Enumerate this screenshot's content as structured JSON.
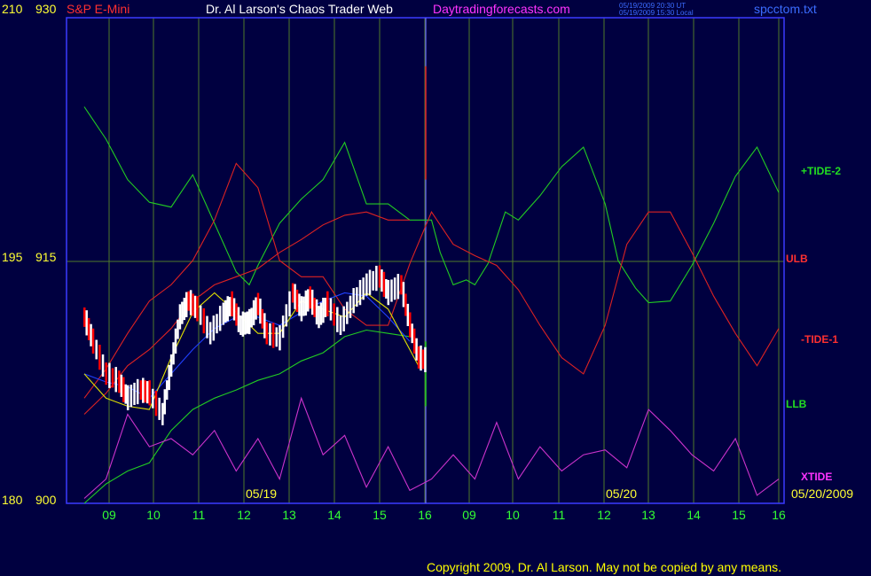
{
  "header": {
    "instrument": "S&P E-Mini",
    "title": "Dr. Al Larson's Chaos Trader Web",
    "website": "Daytradingforecasts.com",
    "timestamp_ut": "05/19/2009 20:30 UT",
    "timestamp_local": "05/19/2009 15:30 Local",
    "filename": "spcctom.txt"
  },
  "footer": {
    "copyright": "Copyright 2009, Dr. Al Larson. May not be copied by any means."
  },
  "colors": {
    "background": "#000040",
    "grid": "#4f7a2a",
    "frame": "#3a3aff",
    "divider": "#6a6aff",
    "tide2": "#22cc22",
    "tide1": "#dd2222",
    "ulb": "#dd2222",
    "llb": "#22cc22",
    "xtide": "#cc33cc",
    "blue_avg": "#2040ff",
    "yellow_avg": "#e0e000",
    "bar_up": "#ffffff",
    "bar_down": "#ff0000",
    "axis_text": "#ffff33",
    "hour_text": "#33ff33"
  },
  "chart_data": {
    "type": "line",
    "y_left_outer": {
      "min": 180,
      "max": 210,
      "ticks": [
        "210",
        "195",
        "180"
      ]
    },
    "y_left_inner": {
      "min": 900,
      "max": 930,
      "ticks": [
        "930",
        "915",
        "900"
      ]
    },
    "x_hour_labels": [
      "09",
      "10",
      "11",
      "12",
      "13",
      "14",
      "15",
      "16",
      "09",
      "10",
      "11",
      "12",
      "13",
      "14",
      "15",
      "16"
    ],
    "date_labels": [
      "05/19",
      "05/20",
      "05/20/2009"
    ],
    "series_labels": [
      "+TIDE-2",
      "ULB",
      "-TIDE-1",
      "LLB",
      "XTIDE"
    ],
    "x_range": [
      0,
      16
    ],
    "series": [
      {
        "name": "+TIDE-2",
        "values": [
          [
            0,
            924.5
          ],
          [
            0.5,
            922.5
          ],
          [
            1,
            920
          ],
          [
            1.5,
            918.6
          ],
          [
            2,
            918.3
          ],
          [
            2.5,
            920.3
          ],
          [
            3,
            917.3
          ],
          [
            3.5,
            914.3
          ],
          [
            3.8,
            913.5
          ],
          [
            4,
            914.7
          ],
          [
            4.5,
            917.3
          ],
          [
            5,
            918.8
          ],
          [
            5.5,
            920
          ],
          [
            6,
            922.3
          ],
          [
            6.5,
            918.5
          ],
          [
            7,
            918.5
          ],
          [
            7.5,
            917.5
          ],
          [
            8,
            917.5
          ],
          [
            8.2,
            915.5
          ],
          [
            8.5,
            913.5
          ],
          [
            8.8,
            913.8
          ],
          [
            9,
            913.5
          ],
          [
            9.3,
            914.8
          ],
          [
            9.7,
            918
          ],
          [
            10,
            917.5
          ],
          [
            10.5,
            919
          ],
          [
            11,
            920.8
          ],
          [
            11.5,
            922
          ],
          [
            12,
            918.5
          ],
          [
            12.3,
            915
          ],
          [
            12.7,
            913.3
          ],
          [
            13,
            912.4
          ],
          [
            13.5,
            912.5
          ],
          [
            14,
            914.7
          ],
          [
            14.5,
            917.3
          ],
          [
            15,
            920.2
          ],
          [
            15.5,
            922
          ],
          [
            16,
            919.2
          ]
        ]
      },
      {
        "name": "-TIDE-1",
        "values": [
          [
            0,
            906.5
          ],
          [
            0.5,
            908.3
          ],
          [
            1,
            910.5
          ],
          [
            1.5,
            912.5
          ],
          [
            2,
            913.5
          ],
          [
            2.5,
            915
          ],
          [
            3,
            917.5
          ],
          [
            3.5,
            921
          ],
          [
            4,
            919.5
          ],
          [
            4.5,
            915
          ],
          [
            5,
            914
          ],
          [
            5.5,
            914
          ],
          [
            6,
            912
          ],
          [
            6.5,
            911
          ],
          [
            7,
            911
          ],
          [
            7.5,
            914.8
          ],
          [
            8,
            918
          ],
          [
            8.5,
            916
          ],
          [
            9,
            915.3
          ],
          [
            9.5,
            914.7
          ],
          [
            10,
            913.2
          ],
          [
            10.5,
            911
          ],
          [
            11,
            909
          ],
          [
            11.5,
            908
          ],
          [
            12,
            911
          ],
          [
            12.5,
            916
          ],
          [
            13,
            918
          ],
          [
            13.5,
            918
          ],
          [
            14,
            915.5
          ],
          [
            14.5,
            912.8
          ],
          [
            15,
            910.5
          ],
          [
            15.5,
            908.5
          ],
          [
            16,
            910.8
          ]
        ]
      },
      {
        "name": "ULB",
        "values": [
          [
            0,
            905.5
          ],
          [
            0.5,
            906.8
          ],
          [
            1,
            908.5
          ],
          [
            1.5,
            909.5
          ],
          [
            2,
            910.8
          ],
          [
            2.5,
            912.5
          ],
          [
            3,
            913.5
          ],
          [
            3.5,
            914
          ],
          [
            4,
            914.5
          ],
          [
            4.5,
            915.5
          ],
          [
            5,
            916.3
          ],
          [
            5.5,
            917.2
          ],
          [
            6,
            917.8
          ],
          [
            6.5,
            918
          ],
          [
            7,
            917.5
          ],
          [
            7.5,
            917.5
          ]
        ]
      },
      {
        "name": "LLB",
        "values": [
          [
            0,
            900
          ],
          [
            0.5,
            901.2
          ],
          [
            1,
            902
          ],
          [
            1.5,
            902.5
          ],
          [
            2,
            904.5
          ],
          [
            2.5,
            905.8
          ],
          [
            3,
            906.5
          ],
          [
            3.5,
            907
          ],
          [
            4,
            907.6
          ],
          [
            4.5,
            908
          ],
          [
            5,
            908.8
          ],
          [
            5.5,
            909.3
          ],
          [
            6,
            910.3
          ],
          [
            6.5,
            910.7
          ],
          [
            7,
            910.5
          ],
          [
            7.5,
            910.3
          ]
        ]
      },
      {
        "name": "XTIDE",
        "values": [
          [
            0,
            900.3
          ],
          [
            0.5,
            901.5
          ],
          [
            1,
            905.5
          ],
          [
            1.5,
            903.5
          ],
          [
            2,
            904
          ],
          [
            2.5,
            903
          ],
          [
            3,
            904.5
          ],
          [
            3.5,
            902
          ],
          [
            4,
            904
          ],
          [
            4.5,
            901.5
          ],
          [
            5,
            906.5
          ],
          [
            5.5,
            903
          ],
          [
            6,
            904.2
          ],
          [
            6.5,
            901
          ],
          [
            7,
            903.5
          ],
          [
            7.5,
            900.8
          ],
          [
            8,
            901.5
          ],
          [
            8.5,
            903
          ],
          [
            9,
            901.5
          ],
          [
            9.5,
            905
          ],
          [
            10,
            901.5
          ],
          [
            10.5,
            903.5
          ],
          [
            11,
            902
          ],
          [
            11.5,
            903
          ],
          [
            12,
            903.3
          ],
          [
            12.5,
            902.2
          ],
          [
            13,
            905.8
          ],
          [
            13.5,
            904.5
          ],
          [
            14,
            903
          ],
          [
            14.5,
            902
          ],
          [
            15,
            904
          ],
          [
            15.5,
            900.5
          ],
          [
            16,
            901.5
          ]
        ]
      },
      {
        "name": "blue",
        "values": [
          [
            0,
            908
          ],
          [
            0.5,
            907.5
          ],
          [
            1,
            907.2
          ],
          [
            1.5,
            906.5
          ],
          [
            2,
            908
          ],
          [
            2.5,
            909.5
          ],
          [
            3,
            910.8
          ],
          [
            3.5,
            911.5
          ],
          [
            4,
            911.5
          ],
          [
            4.5,
            911
          ],
          [
            5,
            911.8
          ],
          [
            5.5,
            912.5
          ],
          [
            6,
            913
          ],
          [
            6.5,
            912.8
          ],
          [
            7,
            911.5
          ],
          [
            7.5,
            910
          ]
        ]
      },
      {
        "name": "yellow",
        "values": [
          [
            0,
            908
          ],
          [
            0.5,
            906.5
          ],
          [
            1,
            906
          ],
          [
            1.5,
            905.8
          ],
          [
            2,
            909
          ],
          [
            2.5,
            911.8
          ],
          [
            3,
            913
          ],
          [
            3.5,
            911.8
          ],
          [
            4,
            910.5
          ],
          [
            4.5,
            910.5
          ],
          [
            5,
            912.5
          ],
          [
            5.5,
            912
          ],
          [
            6,
            911.5
          ],
          [
            6.5,
            913
          ],
          [
            7,
            912
          ],
          [
            7.5,
            909.5
          ],
          [
            7.7,
            908.5
          ]
        ]
      },
      {
        "name": "price",
        "values": [
          [
            0,
            911.5
          ],
          [
            0.2,
            910
          ],
          [
            0.5,
            908
          ],
          [
            0.8,
            907.5
          ],
          [
            1,
            906.5
          ],
          [
            1.3,
            907
          ],
          [
            1.5,
            906.8
          ],
          [
            1.8,
            905.5
          ],
          [
            2,
            908.5
          ],
          [
            2.2,
            911.5
          ],
          [
            2.4,
            912.5
          ],
          [
            2.6,
            912
          ],
          [
            2.9,
            910.5
          ],
          [
            3.2,
            911.7
          ],
          [
            3.4,
            912.3
          ],
          [
            3.6,
            911
          ],
          [
            3.8,
            911.2
          ],
          [
            4,
            912.3
          ],
          [
            4.2,
            910.5
          ],
          [
            4.5,
            910.2
          ],
          [
            4.8,
            913
          ],
          [
            5,
            912
          ],
          [
            5.2,
            912.7
          ],
          [
            5.4,
            911.5
          ],
          [
            5.6,
            912.3
          ],
          [
            5.9,
            911
          ],
          [
            6.2,
            912.5
          ],
          [
            6.5,
            913.5
          ],
          [
            6.8,
            914
          ],
          [
            7,
            913
          ],
          [
            7.3,
            913.5
          ],
          [
            7.5,
            911
          ],
          [
            7.7,
            909
          ],
          [
            7.9,
            908.8
          ]
        ]
      }
    ]
  }
}
